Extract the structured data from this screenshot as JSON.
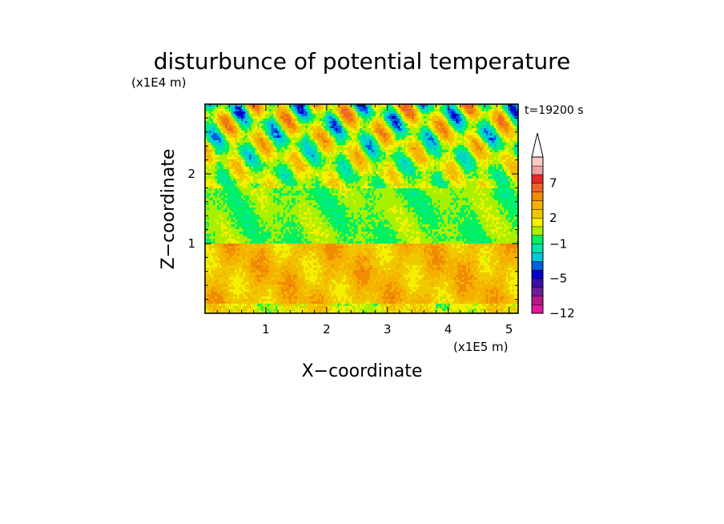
{
  "chart_data": {
    "type": "heatmap",
    "title": "disturbunce of potential temperature",
    "time_label": "t=19200 s",
    "xlabel": "X−coordinate",
    "ylabel": "Z−coordinate",
    "x_unit": "(x1E5 m)",
    "y_unit": "(x1E4 m)",
    "xlim": [
      0,
      5.15
    ],
    "ylim": [
      0,
      3.0
    ],
    "x_ticks": [
      1,
      2,
      3,
      4,
      5
    ],
    "x_tick_labels": [
      "1",
      "2",
      "3",
      "4",
      "5"
    ],
    "y_ticks": [
      1,
      2
    ],
    "y_tick_labels": [
      "1",
      "2"
    ],
    "colorbar": {
      "levels": [
        -12,
        -10,
        -8,
        -6,
        -5,
        -4,
        -3,
        -2,
        -1,
        0,
        1,
        2,
        3,
        4,
        5,
        7,
        9,
        11
      ],
      "tick_values": [
        -12,
        -5,
        -1,
        2,
        7
      ],
      "tick_labels": [
        "−12",
        "−5",
        "−1",
        "2",
        "7"
      ],
      "colors": [
        "#e6149c",
        "#b6188a",
        "#6e1c9c",
        "#3a10a8",
        "#0000c8",
        "#0060e0",
        "#00c8d8",
        "#00e6a8",
        "#00f060",
        "#a8f000",
        "#f4f000",
        "#f0c800",
        "#f5b000",
        "#f08c00",
        "#f06428",
        "#e62828",
        "#f0a0a0",
        "#fbc8c8"
      ],
      "extend_top_color": "#ffffff"
    }
  }
}
